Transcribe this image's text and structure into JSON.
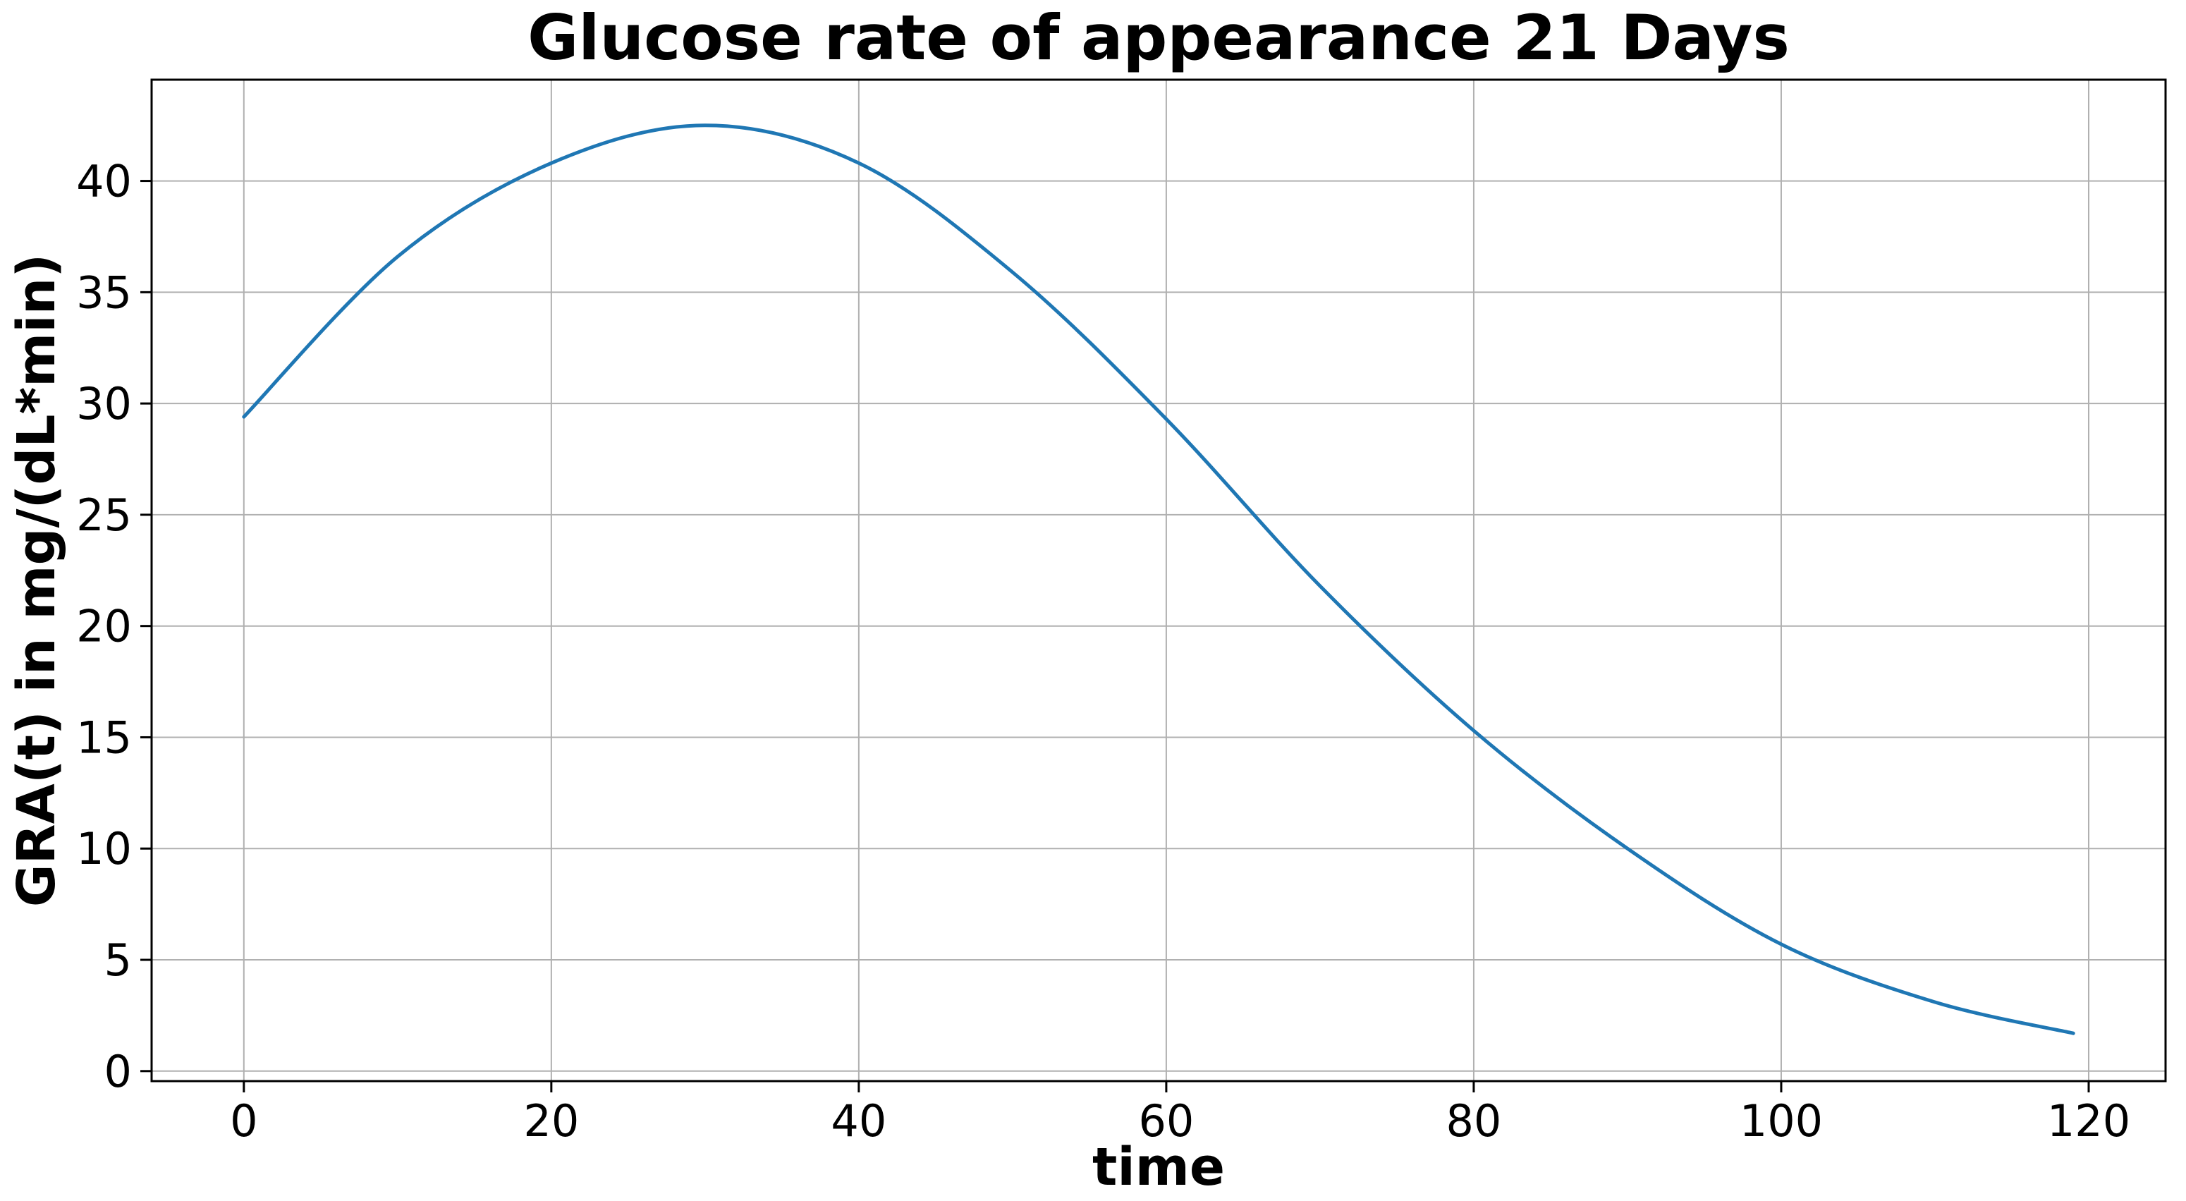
{
  "chart_data": {
    "type": "line",
    "title": "Glucose rate of appearance 21 Days",
    "xlabel": "time",
    "ylabel": "GRA(t) in mg/(dL*min)",
    "series": [
      {
        "name": "GRA(t)",
        "x": [
          0,
          10,
          20,
          30,
          40,
          50,
          60,
          70,
          80,
          90,
          100,
          110,
          119
        ],
        "y": [
          29.4,
          36.6,
          40.8,
          42.5,
          40.8,
          35.9,
          29.3,
          21.8,
          15.3,
          10.0,
          5.7,
          3.1,
          1.7
        ]
      }
    ],
    "peak_point": {
      "x": 30,
      "y": 42.5
    },
    "xlim": [
      -6,
      125
    ],
    "ylim": [
      -0.45,
      44.55
    ],
    "xticks": [
      0,
      20,
      40,
      60,
      80,
      100,
      120
    ],
    "yticks": [
      0,
      5,
      10,
      15,
      20,
      25,
      30,
      35,
      40
    ],
    "grid": true,
    "legend_position": "none",
    "line_color": "#1f77b4",
    "grid_color": "#b0b0b0",
    "axis_color": "#000000",
    "background_color": "#ffffff"
  }
}
